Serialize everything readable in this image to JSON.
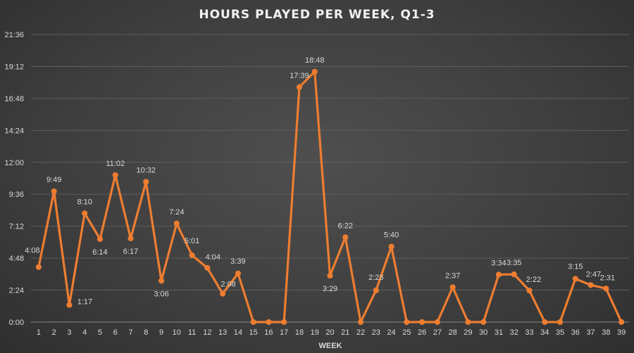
{
  "chart_data": {
    "type": "line",
    "title": "HOURS PLAYED PER WEEK, Q1-3",
    "xlabel": "WEEK",
    "ylabel": "",
    "ylim": [
      0,
      1296
    ],
    "y_ticks": [
      0,
      144,
      288,
      432,
      576,
      720,
      864,
      1008,
      1152,
      1296
    ],
    "y_tick_labels": [
      "0:00",
      "2:24",
      "4:48",
      "7:12",
      "9:36",
      "12:00",
      "14:24",
      "16:48",
      "19:12",
      "21:36"
    ],
    "grid": true,
    "legend": "none",
    "x": [
      1,
      2,
      3,
      4,
      5,
      6,
      7,
      8,
      9,
      10,
      11,
      12,
      13,
      14,
      15,
      16,
      17,
      18,
      19,
      20,
      21,
      22,
      23,
      24,
      25,
      26,
      27,
      28,
      29,
      30,
      31,
      32,
      33,
      34,
      35,
      36,
      37,
      38,
      39
    ],
    "series": [
      {
        "color": "#ed7d31",
        "values_minutes": [
          248,
          589,
          77,
          490,
          374,
          662,
          377,
          632,
          186,
          444,
          301,
          244,
          128,
          219,
          0,
          0,
          0,
          1059,
          1128,
          209,
          382,
          0,
          143,
          340,
          0,
          0,
          0,
          157,
          0,
          0,
          214,
          215,
          142,
          0,
          0,
          195,
          167,
          151,
          0
        ],
        "data_labels": [
          "4:08",
          "9:49",
          "1:17",
          "8:10",
          "6:14",
          "11:02",
          "6:17",
          "10:32",
          "3:06",
          "7:24",
          "5:01",
          "4:04",
          "2:08",
          "3:39",
          "",
          "",
          "",
          "17:39",
          "18:48",
          "3:29",
          "6:22",
          "",
          "2:23",
          "5:40",
          "",
          "",
          "",
          "2:37",
          "",
          "",
          "3:34",
          "3:35",
          "2:22",
          "",
          "",
          "3:15",
          "2:47",
          "2:31",
          ""
        ]
      }
    ]
  }
}
